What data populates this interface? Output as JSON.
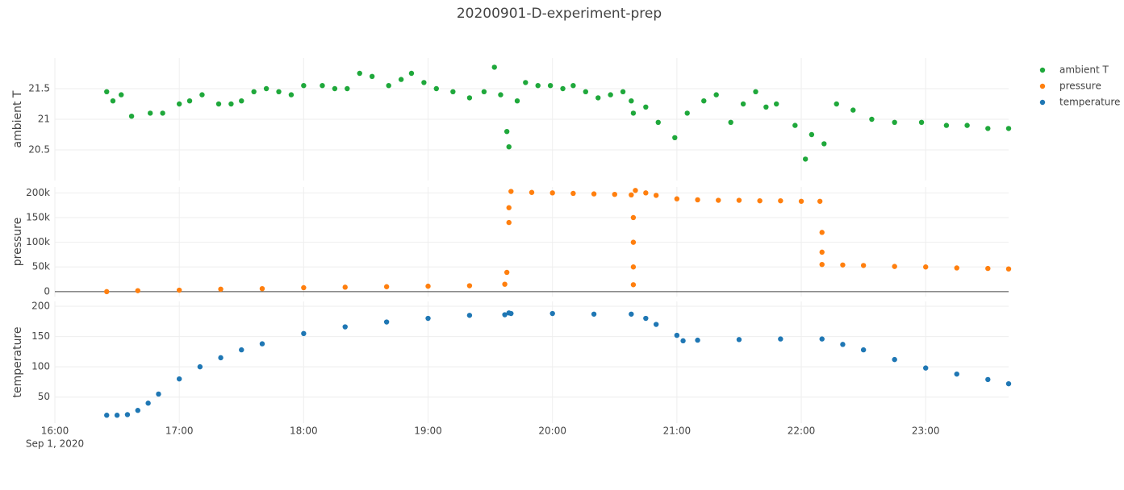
{
  "chart_data": {
    "type": "scatter",
    "title": "20200901-D-experiment-prep",
    "xlim": [
      "2020-09-01 16:00",
      "2020-09-01 23:40"
    ],
    "xticks": [
      {
        "value": "2020-09-01 16:00",
        "label": "16:00"
      },
      {
        "value": "2020-09-01 17:00",
        "label": "17:00"
      },
      {
        "value": "2020-09-01 18:00",
        "label": "18:00"
      },
      {
        "value": "2020-09-01 19:00",
        "label": "19:00"
      },
      {
        "value": "2020-09-01 20:00",
        "label": "20:00"
      },
      {
        "value": "2020-09-01 21:00",
        "label": "21:00"
      },
      {
        "value": "2020-09-01 22:00",
        "label": "22:00"
      },
      {
        "value": "2020-09-01 23:00",
        "label": "23:00"
      }
    ],
    "x_date_label": "Sep 1, 2020",
    "grid": true,
    "legend": "top-right",
    "series": [
      {
        "name": "ambient T",
        "color": "#1fa83b",
        "ylabel": "ambient T",
        "ylim": [
          20.0,
          22.0
        ],
        "yticks": [
          20.5,
          21,
          21.5
        ],
        "x": [
          "2020-09-01 16:25",
          "2020-09-01 16:28",
          "2020-09-01 16:32",
          "2020-09-01 16:37",
          "2020-09-01 16:46",
          "2020-09-01 16:52",
          "2020-09-01 17:00",
          "2020-09-01 17:05",
          "2020-09-01 17:11",
          "2020-09-01 17:19",
          "2020-09-01 17:25",
          "2020-09-01 17:30",
          "2020-09-01 17:36",
          "2020-09-01 17:42",
          "2020-09-01 17:48",
          "2020-09-01 17:54",
          "2020-09-01 18:00",
          "2020-09-01 18:09",
          "2020-09-01 18:15",
          "2020-09-01 18:21",
          "2020-09-01 18:27",
          "2020-09-01 18:33",
          "2020-09-01 18:41",
          "2020-09-01 18:47",
          "2020-09-01 18:52",
          "2020-09-01 18:58",
          "2020-09-01 19:04",
          "2020-09-01 19:12",
          "2020-09-01 19:20",
          "2020-09-01 19:27",
          "2020-09-01 19:32",
          "2020-09-01 19:35",
          "2020-09-01 19:38",
          "2020-09-01 19:39",
          "2020-09-01 19:43",
          "2020-09-01 19:47",
          "2020-09-01 19:53",
          "2020-09-01 19:59",
          "2020-09-01 20:05",
          "2020-09-01 20:10",
          "2020-09-01 20:16",
          "2020-09-01 20:22",
          "2020-09-01 20:28",
          "2020-09-01 20:34",
          "2020-09-01 20:38",
          "2020-09-01 20:39",
          "2020-09-01 20:45",
          "2020-09-01 20:51",
          "2020-09-01 20:59",
          "2020-09-01 21:05",
          "2020-09-01 21:13",
          "2020-09-01 21:19",
          "2020-09-01 21:26",
          "2020-09-01 21:32",
          "2020-09-01 21:38",
          "2020-09-01 21:43",
          "2020-09-01 21:48",
          "2020-09-01 21:57",
          "2020-09-01 22:02",
          "2020-09-01 22:05",
          "2020-09-01 22:11",
          "2020-09-01 22:17",
          "2020-09-01 22:25",
          "2020-09-01 22:34",
          "2020-09-01 22:45",
          "2020-09-01 22:58",
          "2020-09-01 23:10",
          "2020-09-01 23:20",
          "2020-09-01 23:30",
          "2020-09-01 23:40"
        ],
        "values": [
          21.45,
          21.3,
          21.4,
          21.05,
          21.1,
          21.1,
          21.25,
          21.3,
          21.4,
          21.25,
          21.25,
          21.3,
          21.45,
          21.5,
          21.45,
          21.4,
          21.55,
          21.55,
          21.5,
          21.5,
          21.75,
          21.7,
          21.55,
          21.65,
          21.75,
          21.6,
          21.5,
          21.45,
          21.35,
          21.45,
          21.85,
          21.4,
          20.8,
          20.55,
          21.3,
          21.6,
          21.55,
          21.55,
          21.5,
          21.55,
          21.45,
          21.35,
          21.4,
          21.45,
          21.3,
          21.1,
          21.2,
          20.95,
          20.7,
          21.1,
          21.3,
          21.4,
          20.95,
          21.25,
          21.45,
          21.2,
          21.25,
          20.9,
          20.35,
          20.75,
          20.6,
          21.25,
          21.15,
          21.0,
          20.95,
          20.95,
          20.9,
          20.9,
          20.85,
          20.85
        ]
      },
      {
        "name": "pressure",
        "color": "#ff7f0e",
        "ylabel": "pressure",
        "ylim": [
          -10000,
          212000
        ],
        "yticks": [
          0,
          {
            "value": 50000,
            "label": "50k"
          },
          {
            "value": 100000,
            "label": "100k"
          },
          {
            "value": 150000,
            "label": "150k"
          },
          {
            "value": 200000,
            "label": "200k"
          }
        ],
        "x": [
          "2020-09-01 16:25",
          "2020-09-01 16:40",
          "2020-09-01 17:00",
          "2020-09-01 17:20",
          "2020-09-01 17:40",
          "2020-09-01 18:00",
          "2020-09-01 18:20",
          "2020-09-01 18:40",
          "2020-09-01 19:00",
          "2020-09-01 19:20",
          "2020-09-01 19:37",
          "2020-09-01 19:38",
          "2020-09-01 19:39",
          "2020-09-01 19:39",
          "2020-09-01 19:40",
          "2020-09-01 19:50",
          "2020-09-01 20:00",
          "2020-09-01 20:10",
          "2020-09-01 20:20",
          "2020-09-01 20:30",
          "2020-09-01 20:38",
          "2020-09-01 20:39",
          "2020-09-01 20:39",
          "2020-09-01 20:39",
          "2020-09-01 20:39",
          "2020-09-01 20:40",
          "2020-09-01 20:45",
          "2020-09-01 20:50",
          "2020-09-01 21:00",
          "2020-09-01 21:10",
          "2020-09-01 21:20",
          "2020-09-01 21:30",
          "2020-09-01 21:40",
          "2020-09-01 21:50",
          "2020-09-01 22:00",
          "2020-09-01 22:09",
          "2020-09-01 22:10",
          "2020-09-01 22:10",
          "2020-09-01 22:10",
          "2020-09-01 22:20",
          "2020-09-01 22:30",
          "2020-09-01 22:45",
          "2020-09-01 23:00",
          "2020-09-01 23:15",
          "2020-09-01 23:30",
          "2020-09-01 23:40"
        ],
        "values": [
          0,
          2000,
          3000,
          5000,
          6000,
          8000,
          9000,
          10000,
          11000,
          12000,
          15000,
          39000,
          140000,
          170000,
          203000,
          201000,
          200000,
          199000,
          198000,
          197000,
          196000,
          150000,
          100000,
          50000,
          14000,
          205000,
          200000,
          195000,
          188000,
          186000,
          185000,
          185000,
          184000,
          184000,
          183000,
          183000,
          120000,
          80000,
          55000,
          54000,
          53000,
          51000,
          50000,
          48000,
          47000,
          46000
        ]
      },
      {
        "name": "temperature",
        "color": "#1f77b4",
        "ylabel": "temperature",
        "ylim": [
          7,
          208
        ],
        "yticks": [
          50,
          100,
          150,
          200
        ],
        "x": [
          "2020-09-01 16:25",
          "2020-09-01 16:30",
          "2020-09-01 16:35",
          "2020-09-01 16:40",
          "2020-09-01 16:45",
          "2020-09-01 16:50",
          "2020-09-01 17:00",
          "2020-09-01 17:10",
          "2020-09-01 17:20",
          "2020-09-01 17:30",
          "2020-09-01 17:40",
          "2020-09-01 18:00",
          "2020-09-01 18:20",
          "2020-09-01 18:40",
          "2020-09-01 19:00",
          "2020-09-01 19:20",
          "2020-09-01 19:37",
          "2020-09-01 19:39",
          "2020-09-01 19:40",
          "2020-09-01 20:00",
          "2020-09-01 20:20",
          "2020-09-01 20:38",
          "2020-09-01 20:45",
          "2020-09-01 20:50",
          "2020-09-01 21:00",
          "2020-09-01 21:03",
          "2020-09-01 21:10",
          "2020-09-01 21:30",
          "2020-09-01 21:50",
          "2020-09-01 22:10",
          "2020-09-01 22:20",
          "2020-09-01 22:30",
          "2020-09-01 22:45",
          "2020-09-01 23:00",
          "2020-09-01 23:15",
          "2020-09-01 23:30",
          "2020-09-01 23:40"
        ],
        "values": [
          20,
          20,
          21,
          28,
          40,
          55,
          80,
          100,
          115,
          128,
          138,
          155,
          166,
          174,
          180,
          185,
          186,
          189,
          188,
          188,
          187,
          187,
          180,
          170,
          152,
          143,
          144,
          145,
          146,
          146,
          137,
          128,
          112,
          98,
          88,
          79,
          72
        ]
      }
    ]
  }
}
